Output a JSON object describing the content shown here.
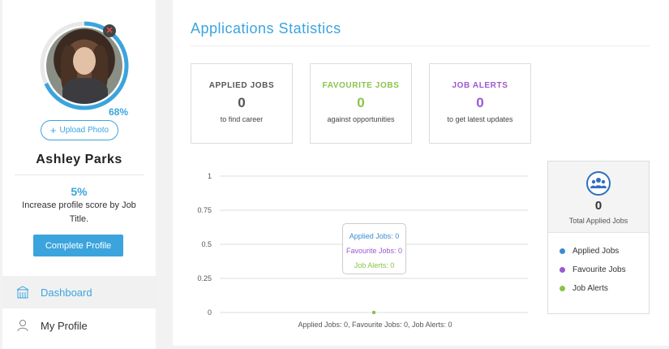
{
  "profile": {
    "completion_percent": 68,
    "completion_label": "68%",
    "upload_label": "Upload Photo",
    "name": "Ashley Parks",
    "score": "5%",
    "score_text": "Increase profile score by Job Title.",
    "complete_label": "Complete Profile"
  },
  "nav": {
    "items": [
      {
        "label": "Dashboard",
        "icon": "building-icon",
        "active": true
      },
      {
        "label": "My Profile",
        "icon": "user-icon",
        "active": false
      }
    ]
  },
  "main": {
    "title": "Applications Statistics",
    "cards": [
      {
        "label": "APPLIED JOBS",
        "count": "0",
        "sub": "to find career",
        "color": "#555555"
      },
      {
        "label": "FAVOURITE JOBS",
        "count": "0",
        "sub": "against opportunities",
        "color": "#8bc34a"
      },
      {
        "label": "JOB ALERTS",
        "count": "0",
        "sub": "to get latest updates",
        "color": "#9b59d0"
      }
    ]
  },
  "chart_data": {
    "type": "line",
    "y_ticks": [
      "1",
      "0.75",
      "0.5",
      "0.25",
      "0"
    ],
    "ylim": [
      0,
      1
    ],
    "grid": true,
    "series": [
      {
        "name": "Applied Jobs",
        "values": [
          0
        ],
        "color": "#3b8cd0"
      },
      {
        "name": "Favourite Jobs",
        "values": [
          0
        ],
        "color": "#9b59d0"
      },
      {
        "name": "Job Alerts",
        "values": [
          0
        ],
        "color": "#8bc34a"
      }
    ],
    "tooltip": [
      "Applied Jobs: 0",
      "Favourite Jobs: 0",
      "Job Alerts: 0"
    ],
    "caption": "Applied Jobs: 0, Favourite Jobs: 0, Job Alerts: 0"
  },
  "summary": {
    "icon": "users-icon",
    "count": "0",
    "label": "Total Applied Jobs",
    "legend": [
      {
        "label": "Applied Jobs",
        "color": "#3b8cd0"
      },
      {
        "label": "Favourite Jobs",
        "color": "#9b59d0"
      },
      {
        "label": "Job Alerts",
        "color": "#8bc34a"
      }
    ]
  }
}
